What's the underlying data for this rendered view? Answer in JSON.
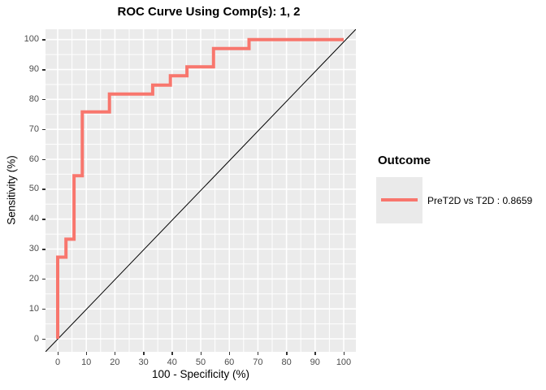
{
  "chart_data": {
    "type": "line",
    "subtype": "roc-step-curve",
    "title": "ROC Curve Using Comp(s): 1, 2",
    "xlabel": "100 - Specificity (%)",
    "ylabel": "Sensitivity (%)",
    "xlim": [
      0,
      100
    ],
    "ylim": [
      0,
      100
    ],
    "x_ticks": [
      0,
      10,
      20,
      30,
      40,
      50,
      60,
      70,
      80,
      90,
      100
    ],
    "y_ticks": [
      0,
      10,
      20,
      30,
      40,
      50,
      60,
      70,
      80,
      90,
      100
    ],
    "minor_ticks": [
      5,
      15,
      25,
      35,
      45,
      55,
      65,
      75,
      85,
      95
    ],
    "grid": "on",
    "panel_bg": "#EBEBEB",
    "grid_color": "#FFFFFF",
    "reference_line": {
      "type": "diagonal",
      "from": [
        0,
        0
      ],
      "to": [
        100,
        100
      ],
      "color": "#000000"
    },
    "legend": {
      "title": "Outcome",
      "position": "right",
      "entries": [
        {
          "label": "PreT2D vs T2D : 0.8659",
          "color": "#F8766D"
        }
      ]
    },
    "series": [
      {
        "name": "PreT2D vs T2D",
        "auc": 0.8659,
        "color": "#F8766D",
        "line_width": 4,
        "step_points": [
          [
            0,
            0
          ],
          [
            0,
            27.3
          ],
          [
            2.9,
            27.3
          ],
          [
            2.9,
            33.3
          ],
          [
            5.7,
            33.3
          ],
          [
            5.7,
            54.5
          ],
          [
            8.6,
            54.5
          ],
          [
            8.6,
            75.8
          ],
          [
            18.1,
            75.8
          ],
          [
            18.1,
            81.8
          ],
          [
            33.2,
            81.8
          ],
          [
            33.2,
            84.8
          ],
          [
            39.4,
            84.8
          ],
          [
            39.4,
            87.9
          ],
          [
            45.2,
            87.9
          ],
          [
            45.2,
            90.9
          ],
          [
            54.5,
            90.9
          ],
          [
            54.5,
            97
          ],
          [
            66.9,
            97
          ],
          [
            66.9,
            100
          ],
          [
            100,
            100
          ]
        ]
      }
    ]
  }
}
